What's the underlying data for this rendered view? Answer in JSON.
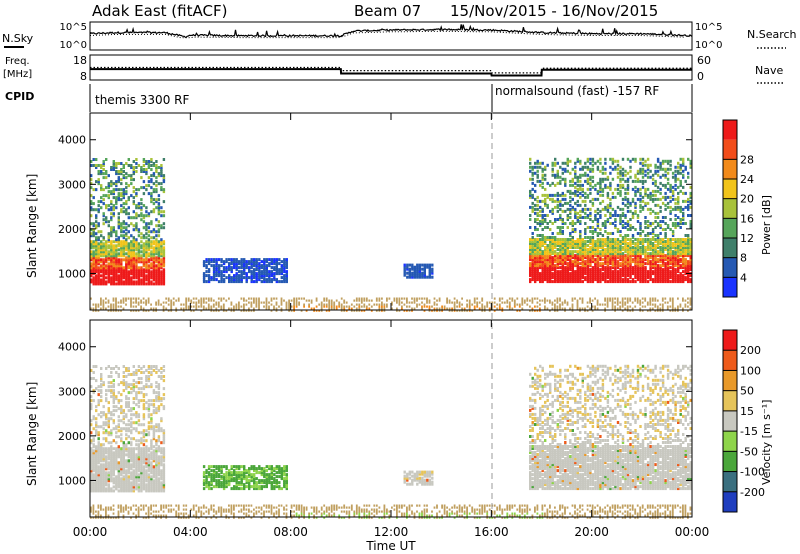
{
  "header": {
    "station": "Adak East (fitACF)",
    "beam": "Beam 07",
    "dates": "15/Nov/2015 - 16/Nov/2015"
  },
  "labels": {
    "nsky": "N.Sky",
    "freq": "Freq.",
    "freq_unit": "[MHz]",
    "cpid": "CPID",
    "nsearch": "N.Search",
    "nave": "Nave",
    "slant_range": "Slant Range [km]",
    "power_axis": "Power [dB]",
    "velocity_axis": "Velocity [m s⁻¹]",
    "time_axis": "Time UT"
  },
  "nsky_ticks": [
    "10^5",
    "10^0"
  ],
  "nsearch_ticks": [
    "10^5",
    "10^0"
  ],
  "freq_ticks": [
    "18",
    "8"
  ],
  "nave_ticks": [
    "60",
    "0"
  ],
  "cpid_segments": [
    {
      "label": "themis 3300 RF",
      "start_hour": 0,
      "end_hour": 16
    },
    {
      "label": "normalsound (fast) -157 RF",
      "start_hour": 16,
      "end_hour": 24
    }
  ],
  "colors": {
    "power": [
      "#1a33ff",
      "#2559b3",
      "#3f7f6a",
      "#56a55a",
      "#a8c23a",
      "#f2c41a",
      "#f28a1a",
      "#f24d1a",
      "#ee1a1a"
    ],
    "velocity": [
      "#1f3ebf",
      "#3a6f7f",
      "#4aa63a",
      "#8ed44a",
      "#c8c8c0",
      "#e6c45a",
      "#e8992a",
      "#ee5a1a",
      "#ee1a1a"
    ],
    "noise": "#c0a060"
  },
  "chart_data": [
    {
      "type": "line",
      "title": "N.Sky / N.Search",
      "x": [
        0,
        1,
        2,
        3,
        3.8,
        4,
        6,
        8,
        10,
        10.5,
        12,
        14,
        16,
        18,
        20,
        22,
        24
      ],
      "y_nsky_log": [
        2.8,
        3.0,
        3.0,
        3.0,
        2.2,
        2.5,
        2.4,
        2.4,
        2.4,
        3.3,
        3.5,
        3.6,
        3.5,
        3.0,
        2.8,
        2.8,
        2.4
      ],
      "ylim": [
        0,
        5
      ]
    },
    {
      "type": "line",
      "title": "Freq. / Nave",
      "x": [
        0,
        10,
        10.01,
        16,
        16.01,
        18,
        18.01,
        24
      ],
      "freq_mhz": [
        12.3,
        12.3,
        10.4,
        10.4,
        9.5,
        9.5,
        12.0,
        12.0
      ],
      "nave": [
        30,
        30,
        22,
        22,
        16,
        16,
        28,
        28
      ],
      "ylim_freq": [
        8,
        18
      ],
      "ylim_nave": [
        0,
        60
      ]
    },
    {
      "type": "heatmap",
      "title": "Power",
      "colorbar_label": "Power [dB]",
      "colorbar_ticks": [
        4,
        8,
        12,
        16,
        20,
        24,
        28
      ],
      "clim": [
        0,
        30
      ],
      "xlabel": "Time UT",
      "ylabel": "Slant Range [km]",
      "x_ticks": [
        "00:00",
        "04:00",
        "08:00",
        "12:00",
        "16:00",
        "20:00",
        "00:00"
      ],
      "xlim_hours": [
        0,
        24
      ],
      "y_ticks": [
        1000,
        2000,
        3000,
        4000
      ],
      "ylim_km": [
        180,
        4600
      ],
      "echo_regions": [
        {
          "t0": 0.0,
          "t1": 3.0,
          "r0": 800,
          "r1": 3600,
          "power_db": 22
        },
        {
          "t0": 4.5,
          "t1": 7.8,
          "r0": 850,
          "r1": 1350,
          "power_db": 7
        },
        {
          "t0": 12.5,
          "t1": 13.6,
          "r0": 950,
          "r1": 1250,
          "power_db": 7
        },
        {
          "t0": 17.5,
          "t1": 24.0,
          "r0": 850,
          "r1": 3600,
          "power_db": 24
        }
      ]
    },
    {
      "type": "heatmap",
      "title": "Velocity",
      "colorbar_label": "Velocity [m s⁻¹]",
      "colorbar_ticks": [
        200,
        100,
        50,
        15,
        -15,
        -50,
        -100,
        -200
      ],
      "clim": [
        -250,
        250
      ],
      "xlabel": "Time UT",
      "ylabel": "Slant Range [km]",
      "x_ticks": [
        "00:00",
        "04:00",
        "08:00",
        "12:00",
        "16:00",
        "20:00",
        "00:00"
      ],
      "xlim_hours": [
        0,
        24
      ],
      "y_ticks": [
        1000,
        2000,
        3000,
        4000
      ],
      "ylim_km": [
        180,
        4600
      ],
      "echo_regions": [
        {
          "t0": 0.0,
          "t1": 3.0,
          "r0": 800,
          "r1": 3600,
          "velocity": 0
        },
        {
          "t0": 4.5,
          "t1": 7.8,
          "r0": 850,
          "r1": 1350,
          "velocity": 40
        },
        {
          "t0": 12.5,
          "t1": 13.6,
          "r0": 950,
          "r1": 1250,
          "velocity": 0
        },
        {
          "t0": 17.5,
          "t1": 24.0,
          "r0": 850,
          "r1": 3600,
          "velocity": 0
        }
      ]
    }
  ]
}
